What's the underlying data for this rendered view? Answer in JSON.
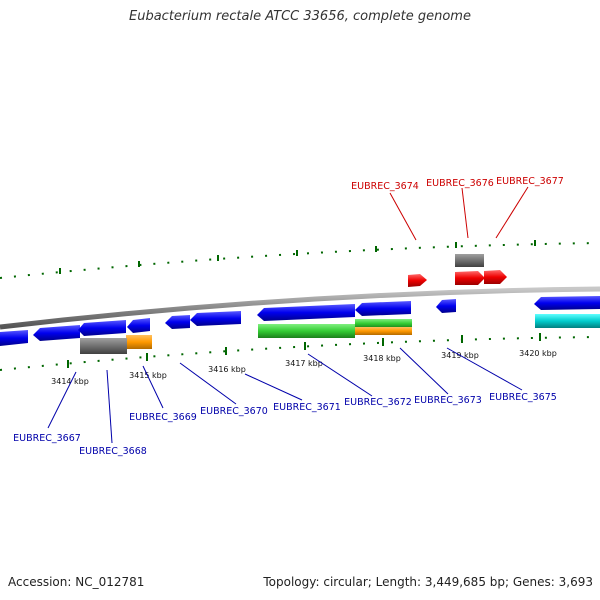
{
  "title": "Eubacterium rectale ATCC 33656, complete genome",
  "footer": {
    "accession": "Accession: NC_012781",
    "summary": "Topology: circular; Length: 3,449,685 bp; Genes: 3,693"
  },
  "colors": {
    "forward_gene": "#ff0000",
    "reverse_gene": "#0000ff",
    "rna": "#808080",
    "cds_green": "#33cc33",
    "cds_orange": "#ff9900",
    "cds_cyan": "#00cccc",
    "ruler_ticks": "#006600",
    "forward_label": "#cc0000",
    "reverse_label": "#0000aa"
  },
  "ruler": {
    "ticks": [
      {
        "kbp": 3414,
        "label": "3414 kbp"
      },
      {
        "kbp": 3415,
        "label": "3415 kbp"
      },
      {
        "kbp": 3416,
        "label": "3416 kbp"
      },
      {
        "kbp": 3417,
        "label": "3417 kbp"
      },
      {
        "kbp": 3418,
        "label": "3418 kbp"
      },
      {
        "kbp": 3419,
        "label": "3419 kbp"
      },
      {
        "kbp": 3420,
        "label": "3420 kbp"
      }
    ]
  },
  "labels": {
    "top": [
      {
        "name": "EUBREC_3674"
      },
      {
        "name": "EUBREC_3676"
      },
      {
        "name": "EUBREC_3677"
      }
    ],
    "bottom": [
      {
        "name": "EUBREC_3667"
      },
      {
        "name": "EUBREC_3668"
      },
      {
        "name": "EUBREC_3669"
      },
      {
        "name": "EUBREC_3670"
      },
      {
        "name": "EUBREC_3671"
      },
      {
        "name": "EUBREC_3672"
      },
      {
        "name": "EUBREC_3673"
      },
      {
        "name": "EUBREC_3675"
      }
    ]
  }
}
